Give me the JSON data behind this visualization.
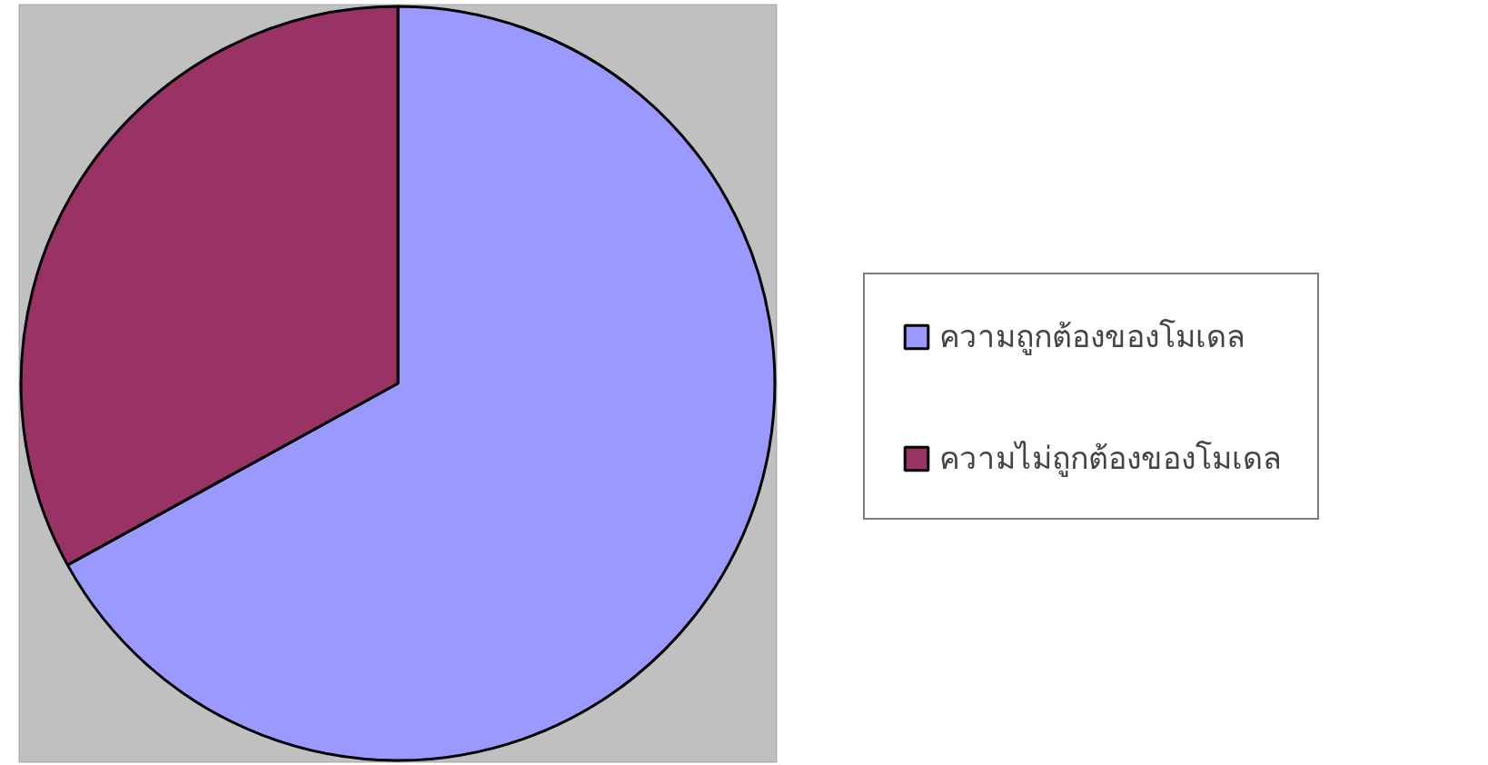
{
  "chart_data": {
    "type": "pie",
    "categories": [
      "ความถูกต้องของโมเดล",
      "ความไม่ถูกต้องของโมเดล"
    ],
    "values": [
      67,
      33
    ],
    "colors": [
      "#9999ff",
      "#993366"
    ],
    "legend": "right"
  }
}
